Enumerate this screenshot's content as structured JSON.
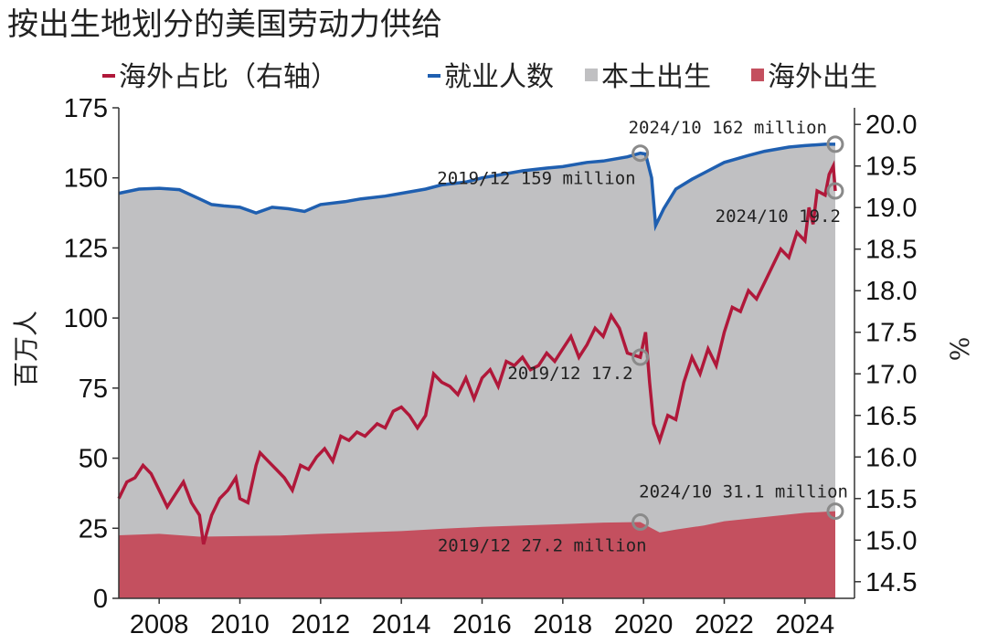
{
  "chart_data": {
    "type": "area",
    "title": "按出生地划分的美国劳动力供给",
    "ylabel": "百万人",
    "y2label": "%",
    "ylim": [
      0,
      175
    ],
    "y2lim": [
      14.3,
      20.2
    ],
    "yticks": [
      0,
      25,
      50,
      75,
      100,
      125,
      150,
      175
    ],
    "y2ticks": [
      "14.5",
      "15.0",
      "15.5",
      "16.0",
      "16.5",
      "17.0",
      "17.5",
      "18.0",
      "18.5",
      "19.0",
      "19.5",
      "20.0"
    ],
    "xlim": [
      2007.0,
      2025.0
    ],
    "xticks": [
      "2008",
      "2010",
      "2012",
      "2014",
      "2016",
      "2018",
      "2020",
      "2022",
      "2024"
    ],
    "legend": {
      "placement": "top",
      "items": [
        {
          "label": "海外占比（右轴）",
          "color": "#b0183a",
          "kind": "line"
        },
        {
          "label": "就业人数",
          "color": "#1f5fb0",
          "kind": "line"
        },
        {
          "label": "本土出生",
          "color": "#c0c0c2",
          "kind": "area"
        },
        {
          "label": "海外出生",
          "color": "#c4505f",
          "kind": "area"
        }
      ]
    },
    "series": [
      {
        "name": "就业人数",
        "axis": "left",
        "points": [
          [
            2007.0,
            144.5
          ],
          [
            2007.5,
            146.0
          ],
          [
            2008.0,
            146.3
          ],
          [
            2008.5,
            145.8
          ],
          [
            2009.0,
            142.5
          ],
          [
            2009.3,
            140.5
          ],
          [
            2009.6,
            140.0
          ],
          [
            2010.0,
            139.5
          ],
          [
            2010.4,
            137.5
          ],
          [
            2010.8,
            139.5
          ],
          [
            2011.2,
            139.0
          ],
          [
            2011.6,
            138.0
          ],
          [
            2012.0,
            140.5
          ],
          [
            2012.6,
            141.5
          ],
          [
            2013.0,
            142.5
          ],
          [
            2013.6,
            143.5
          ],
          [
            2014.0,
            144.5
          ],
          [
            2014.6,
            146.0
          ],
          [
            2015.0,
            147.5
          ],
          [
            2015.6,
            148.5
          ],
          [
            2016.0,
            150.0
          ],
          [
            2016.6,
            151.5
          ],
          [
            2017.0,
            152.5
          ],
          [
            2017.6,
            153.5
          ],
          [
            2018.0,
            154.0
          ],
          [
            2018.6,
            155.5
          ],
          [
            2019.0,
            156.0
          ],
          [
            2019.6,
            157.5
          ],
          [
            2019.92,
            158.8
          ],
          [
            2020.05,
            158.5
          ],
          [
            2020.2,
            150.0
          ],
          [
            2020.3,
            133.0
          ],
          [
            2020.5,
            139.0
          ],
          [
            2020.8,
            146.0
          ],
          [
            2021.2,
            149.5
          ],
          [
            2021.6,
            152.5
          ],
          [
            2022.0,
            155.5
          ],
          [
            2022.6,
            158.0
          ],
          [
            2023.0,
            159.5
          ],
          [
            2023.6,
            161.0
          ],
          [
            2024.0,
            161.5
          ],
          [
            2024.5,
            162.0
          ],
          [
            2024.75,
            162.0
          ]
        ]
      },
      {
        "name": "海外出生",
        "axis": "left",
        "points": [
          [
            2007.0,
            22.5
          ],
          [
            2008.0,
            23.0
          ],
          [
            2009.0,
            22.0
          ],
          [
            2010.0,
            22.2
          ],
          [
            2011.0,
            22.4
          ],
          [
            2012.0,
            23.0
          ],
          [
            2013.0,
            23.5
          ],
          [
            2014.0,
            24.0
          ],
          [
            2015.0,
            24.8
          ],
          [
            2016.0,
            25.5
          ],
          [
            2017.0,
            26.0
          ],
          [
            2018.0,
            26.5
          ],
          [
            2019.0,
            27.0
          ],
          [
            2019.92,
            27.2
          ],
          [
            2020.2,
            25.0
          ],
          [
            2020.4,
            23.5
          ],
          [
            2020.8,
            24.5
          ],
          [
            2021.5,
            26.0
          ],
          [
            2022.0,
            27.5
          ],
          [
            2023.0,
            29.0
          ],
          [
            2024.0,
            30.5
          ],
          [
            2024.75,
            31.1
          ]
        ]
      },
      {
        "name": "海外占比（右轴）",
        "axis": "right",
        "points": [
          [
            2007.0,
            15.5
          ],
          [
            2007.2,
            15.7
          ],
          [
            2007.4,
            15.75
          ],
          [
            2007.6,
            15.9
          ],
          [
            2007.8,
            15.8
          ],
          [
            2008.0,
            15.6
          ],
          [
            2008.2,
            15.4
          ],
          [
            2008.4,
            15.55
          ],
          [
            2008.6,
            15.7
          ],
          [
            2008.8,
            15.45
          ],
          [
            2009.0,
            15.3
          ],
          [
            2009.1,
            14.95
          ],
          [
            2009.3,
            15.3
          ],
          [
            2009.5,
            15.5
          ],
          [
            2009.7,
            15.6
          ],
          [
            2009.9,
            15.75
          ],
          [
            2010.0,
            15.5
          ],
          [
            2010.2,
            15.45
          ],
          [
            2010.4,
            15.9
          ],
          [
            2010.5,
            16.05
          ],
          [
            2010.7,
            15.95
          ],
          [
            2010.9,
            15.85
          ],
          [
            2011.1,
            15.75
          ],
          [
            2011.3,
            15.6
          ],
          [
            2011.5,
            15.9
          ],
          [
            2011.7,
            15.85
          ],
          [
            2011.9,
            16.0
          ],
          [
            2012.1,
            16.1
          ],
          [
            2012.3,
            15.95
          ],
          [
            2012.5,
            16.25
          ],
          [
            2012.7,
            16.2
          ],
          [
            2012.9,
            16.3
          ],
          [
            2013.1,
            16.25
          ],
          [
            2013.4,
            16.4
          ],
          [
            2013.6,
            16.35
          ],
          [
            2013.8,
            16.55
          ],
          [
            2014.0,
            16.6
          ],
          [
            2014.2,
            16.5
          ],
          [
            2014.4,
            16.35
          ],
          [
            2014.6,
            16.5
          ],
          [
            2014.8,
            17.0
          ],
          [
            2015.0,
            16.9
          ],
          [
            2015.2,
            16.85
          ],
          [
            2015.4,
            16.75
          ],
          [
            2015.6,
            16.95
          ],
          [
            2015.8,
            16.7
          ],
          [
            2016.0,
            16.95
          ],
          [
            2016.2,
            17.05
          ],
          [
            2016.4,
            16.85
          ],
          [
            2016.6,
            17.15
          ],
          [
            2016.8,
            17.1
          ],
          [
            2017.0,
            17.2
          ],
          [
            2017.2,
            17.05
          ],
          [
            2017.4,
            17.1
          ],
          [
            2017.6,
            17.25
          ],
          [
            2017.8,
            17.15
          ],
          [
            2018.0,
            17.3
          ],
          [
            2018.2,
            17.45
          ],
          [
            2018.4,
            17.2
          ],
          [
            2018.6,
            17.35
          ],
          [
            2018.8,
            17.55
          ],
          [
            2019.0,
            17.45
          ],
          [
            2019.2,
            17.7
          ],
          [
            2019.4,
            17.55
          ],
          [
            2019.6,
            17.25
          ],
          [
            2019.92,
            17.2
          ],
          [
            2020.05,
            17.5
          ],
          [
            2020.15,
            16.9
          ],
          [
            2020.25,
            16.4
          ],
          [
            2020.4,
            16.2
          ],
          [
            2020.6,
            16.5
          ],
          [
            2020.8,
            16.45
          ],
          [
            2021.0,
            16.9
          ],
          [
            2021.2,
            17.2
          ],
          [
            2021.4,
            17.0
          ],
          [
            2021.6,
            17.3
          ],
          [
            2021.8,
            17.1
          ],
          [
            2022.0,
            17.5
          ],
          [
            2022.2,
            17.8
          ],
          [
            2022.4,
            17.75
          ],
          [
            2022.6,
            18.0
          ],
          [
            2022.8,
            17.9
          ],
          [
            2023.0,
            18.1
          ],
          [
            2023.2,
            18.3
          ],
          [
            2023.4,
            18.5
          ],
          [
            2023.6,
            18.4
          ],
          [
            2023.8,
            18.7
          ],
          [
            2024.0,
            18.6
          ],
          [
            2024.1,
            19.0
          ],
          [
            2024.2,
            18.8
          ],
          [
            2024.3,
            19.2
          ],
          [
            2024.5,
            19.15
          ],
          [
            2024.6,
            19.4
          ],
          [
            2024.7,
            19.5
          ],
          [
            2024.75,
            19.2
          ]
        ]
      }
    ],
    "annotations": [
      {
        "text": "2024/10 162 million",
        "series": "就业人数",
        "x": 2024.75,
        "y": 162,
        "axis": "left"
      },
      {
        "text": "2019/12 159 million",
        "series": "就业人数",
        "x": 2019.92,
        "y": 158.8,
        "axis": "left"
      },
      {
        "text": "2024/10 19.2",
        "series": "海外占比（右轴）",
        "x": 2024.75,
        "y": 19.2,
        "axis": "right"
      },
      {
        "text": "2019/12 17.2",
        "series": "海外占比（右轴）",
        "x": 2019.92,
        "y": 17.2,
        "axis": "right"
      },
      {
        "text": "2024/10 31.1 million",
        "series": "海外出生",
        "x": 2024.75,
        "y": 31.1,
        "axis": "left"
      },
      {
        "text": "2019/12 27.2 million",
        "series": "海外出生",
        "x": 2019.92,
        "y": 27.2,
        "axis": "left"
      }
    ]
  }
}
